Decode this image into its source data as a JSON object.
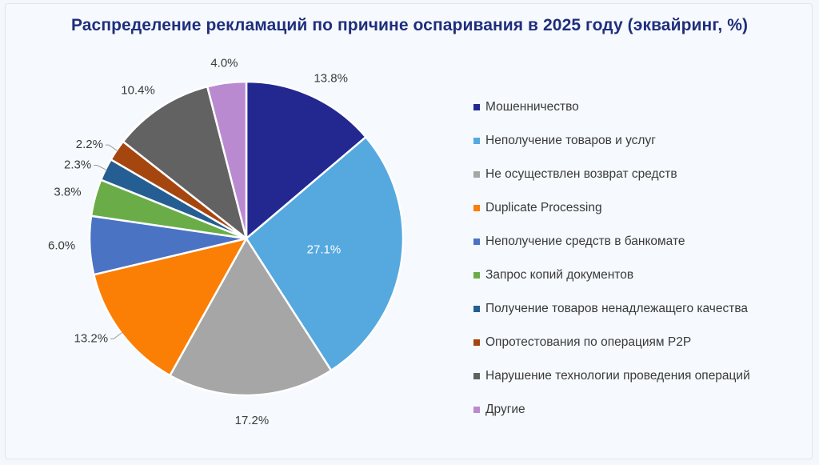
{
  "chart_data": {
    "type": "pie",
    "title": "Распределение рекламаций по причине оспаривания в 2025 году (эквайринг, %)",
    "slices": [
      {
        "name": "Мошенничество",
        "value": 13.8,
        "label": "13.8%",
        "color": "#232890"
      },
      {
        "name": "Неполучение товаров и услуг",
        "value": 27.1,
        "label": "27.1%",
        "color": "#55a9df"
      },
      {
        "name": "Не осуществлен возврат средств",
        "value": 17.2,
        "label": "17.2%",
        "color": "#a6a6a6"
      },
      {
        "name": "Duplicate Processing",
        "value": 13.2,
        "label": "13.2%",
        "color": "#fb7f05"
      },
      {
        "name": "Неполучение средств в банкомате",
        "value": 6.0,
        "label": "6.0%",
        "color": "#4a73c4"
      },
      {
        "name": "Запрос копий документов",
        "value": 3.8,
        "label": "3.8%",
        "color": "#6aad48"
      },
      {
        "name": "Получение товаров ненадлежащего качества",
        "value": 2.3,
        "label": "2.3%",
        "color": "#255e92"
      },
      {
        "name": "Опротестования по операциям P2P",
        "value": 2.2,
        "label": "2.2%",
        "color": "#a6460f"
      },
      {
        "name": "Нарушение технологии проведения операций",
        "value": 10.4,
        "label": "10.4%",
        "color": "#626262"
      },
      {
        "name": "Другие",
        "value": 4.0,
        "label": "4.0%",
        "color": "#ba8ad1"
      }
    ],
    "legend_position": "right",
    "start_angle": "12 o'clock",
    "direction": "clockwise"
  }
}
